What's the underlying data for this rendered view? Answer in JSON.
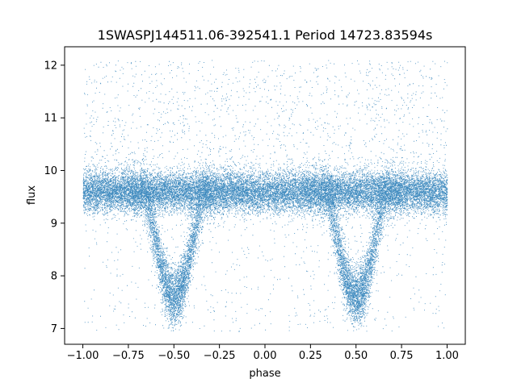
{
  "chart_data": {
    "type": "scatter",
    "title": "1SWASPJ144511.06-392541.1 Period 14723.83594s",
    "xlabel": "phase",
    "ylabel": "flux",
    "xlim": [
      -1.1,
      1.1
    ],
    "ylim": [
      6.7,
      12.35
    ],
    "xticks": [
      -1.0,
      -0.75,
      -0.5,
      -0.25,
      0.0,
      0.25,
      0.5,
      0.75,
      1.0
    ],
    "xtick_labels": [
      "−1.00",
      "−0.75",
      "−0.50",
      "−0.25",
      "0.00",
      "0.25",
      "0.50",
      "0.75",
      "1.00"
    ],
    "yticks": [
      7,
      8,
      9,
      10,
      11,
      12
    ],
    "ytick_labels": [
      "7",
      "8",
      "9",
      "10",
      "11",
      "12"
    ],
    "marker_color": "#1f77b4",
    "grid": false,
    "baseline_flux": 9.6,
    "baseline_scatter": 0.35,
    "eclipse_phases": [
      -0.5,
      0.5
    ],
    "eclipse_min_flux": 7.6,
    "flux_range": [
      6.95,
      12.1
    ],
    "phase_range": [
      -1.0,
      1.0
    ]
  }
}
